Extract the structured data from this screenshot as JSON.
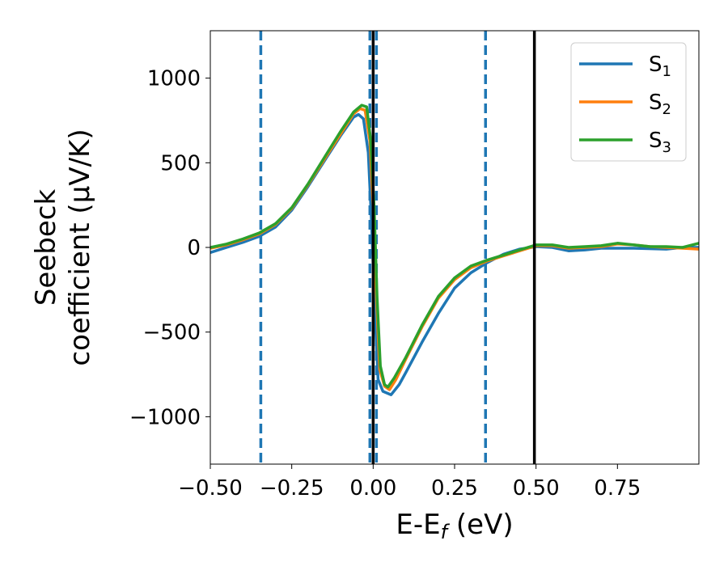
{
  "chart_data": {
    "type": "line",
    "title": "",
    "xlabel": "E-E_f (eV)",
    "xlabel_parts": {
      "main": "E-E",
      "sub": "f",
      "rest": " (eV)"
    },
    "ylabel_line1": "Seebeck",
    "ylabel_line2": "coefficient  (μV/K)",
    "xlim": [
      -0.5,
      1.0
    ],
    "ylim": [
      -1280,
      1280
    ],
    "x_ticks": [
      -0.5,
      -0.25,
      0.0,
      0.25,
      0.5,
      0.75
    ],
    "x_tick_labels": [
      "−0.50",
      "−0.25",
      "0.00",
      "0.25",
      "0.50",
      "0.75"
    ],
    "y_ticks": [
      1000,
      500,
      0,
      -500,
      -1000
    ],
    "y_tick_labels": [
      "1000",
      "500",
      "0",
      "−500",
      "−1000"
    ],
    "legend_position": "top-right",
    "vlines_dashed": [
      -0.345,
      -0.01,
      0.01,
      0.345
    ],
    "vlines_solid": [
      0.0,
      0.495
    ],
    "series": [
      {
        "name": "S",
        "sub": "1",
        "color": "#1f77b4",
        "points": [
          [
            -0.5,
            -30
          ],
          [
            -0.45,
            0
          ],
          [
            -0.4,
            30
          ],
          [
            -0.35,
            65
          ],
          [
            -0.3,
            120
          ],
          [
            -0.25,
            220
          ],
          [
            -0.2,
            360
          ],
          [
            -0.15,
            510
          ],
          [
            -0.1,
            660
          ],
          [
            -0.06,
            770
          ],
          [
            -0.045,
            785
          ],
          [
            -0.03,
            760
          ],
          [
            -0.015,
            560
          ],
          [
            -0.005,
            150
          ],
          [
            0.005,
            -350
          ],
          [
            0.015,
            -780
          ],
          [
            0.03,
            -850
          ],
          [
            0.055,
            -870
          ],
          [
            0.08,
            -810
          ],
          [
            0.1,
            -740
          ],
          [
            0.15,
            -560
          ],
          [
            0.2,
            -390
          ],
          [
            0.25,
            -240
          ],
          [
            0.3,
            -150
          ],
          [
            0.35,
            -90
          ],
          [
            0.4,
            -40
          ],
          [
            0.45,
            -10
          ],
          [
            0.5,
            5
          ],
          [
            0.55,
            0
          ],
          [
            0.6,
            -20
          ],
          [
            0.65,
            -15
          ],
          [
            0.7,
            -5
          ],
          [
            0.8,
            -5
          ],
          [
            0.9,
            -10
          ],
          [
            0.95,
            0
          ],
          [
            1.0,
            0
          ]
        ]
      },
      {
        "name": "S",
        "sub": "2",
        "color": "#ff7f0e",
        "points": [
          [
            -0.5,
            -5
          ],
          [
            -0.45,
            15
          ],
          [
            -0.4,
            45
          ],
          [
            -0.35,
            80
          ],
          [
            -0.3,
            135
          ],
          [
            -0.25,
            230
          ],
          [
            -0.2,
            370
          ],
          [
            -0.15,
            520
          ],
          [
            -0.1,
            670
          ],
          [
            -0.06,
            790
          ],
          [
            -0.04,
            820
          ],
          [
            -0.025,
            810
          ],
          [
            -0.01,
            630
          ],
          [
            0.0,
            240
          ],
          [
            0.01,
            -300
          ],
          [
            0.02,
            -720
          ],
          [
            0.035,
            -820
          ],
          [
            0.05,
            -840
          ],
          [
            0.07,
            -780
          ],
          [
            0.1,
            -660
          ],
          [
            0.15,
            -470
          ],
          [
            0.2,
            -300
          ],
          [
            0.25,
            -190
          ],
          [
            0.3,
            -120
          ],
          [
            0.35,
            -80
          ],
          [
            0.4,
            -50
          ],
          [
            0.45,
            -20
          ],
          [
            0.5,
            10
          ],
          [
            0.55,
            10
          ],
          [
            0.6,
            -5
          ],
          [
            0.65,
            0
          ],
          [
            0.7,
            5
          ],
          [
            0.75,
            20
          ],
          [
            0.8,
            15
          ],
          [
            0.85,
            5
          ],
          [
            0.9,
            0
          ],
          [
            0.95,
            -5
          ],
          [
            1.0,
            -10
          ]
        ]
      },
      {
        "name": "S",
        "sub": "3",
        "color": "#2ca02c",
        "points": [
          [
            -0.5,
            0
          ],
          [
            -0.45,
            20
          ],
          [
            -0.4,
            50
          ],
          [
            -0.35,
            85
          ],
          [
            -0.3,
            140
          ],
          [
            -0.25,
            235
          ],
          [
            -0.2,
            375
          ],
          [
            -0.15,
            530
          ],
          [
            -0.1,
            685
          ],
          [
            -0.06,
            800
          ],
          [
            -0.035,
            840
          ],
          [
            -0.02,
            830
          ],
          [
            -0.008,
            640
          ],
          [
            0.003,
            240
          ],
          [
            0.012,
            -300
          ],
          [
            0.022,
            -700
          ],
          [
            0.035,
            -810
          ],
          [
            0.045,
            -825
          ],
          [
            0.065,
            -770
          ],
          [
            0.1,
            -650
          ],
          [
            0.15,
            -460
          ],
          [
            0.2,
            -290
          ],
          [
            0.25,
            -180
          ],
          [
            0.3,
            -110
          ],
          [
            0.35,
            -75
          ],
          [
            0.4,
            -45
          ],
          [
            0.45,
            -15
          ],
          [
            0.5,
            15
          ],
          [
            0.55,
            15
          ],
          [
            0.6,
            0
          ],
          [
            0.65,
            5
          ],
          [
            0.7,
            10
          ],
          [
            0.75,
            25
          ],
          [
            0.8,
            15
          ],
          [
            0.85,
            5
          ],
          [
            0.9,
            5
          ],
          [
            0.95,
            0
          ],
          [
            1.0,
            25
          ]
        ]
      }
    ]
  }
}
